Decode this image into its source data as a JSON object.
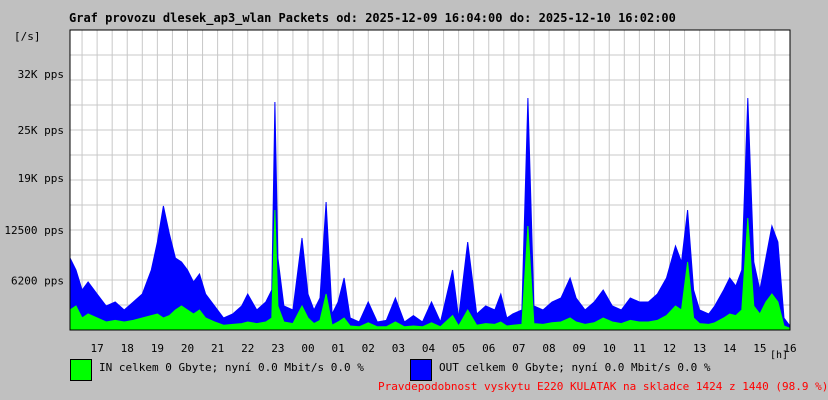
{
  "chart_data": {
    "type": "area",
    "title": "Graf provozu dlesek_ap3_wlan Packets od: 2025-12-09 16:04:00 do: 2025-12-10 16:02:00",
    "ylabel": "[/s]",
    "xlabel_unit": "[h]",
    "ylim": [
      0,
      37500
    ],
    "y_ticks": [
      {
        "value": 6200,
        "label": "6200 pps"
      },
      {
        "value": 12500,
        "label": "12500 pps"
      },
      {
        "value": 19000,
        "label": "19K pps"
      },
      {
        "value": 25000,
        "label": "25K pps"
      },
      {
        "value": 32000,
        "label": "32K pps"
      }
    ],
    "x_ticks": [
      "17",
      "18",
      "19",
      "20",
      "21",
      "22",
      "23",
      "00",
      "01",
      "02",
      "03",
      "04",
      "05",
      "06",
      "07",
      "08",
      "09",
      "10",
      "11",
      "12",
      "13",
      "14",
      "15",
      "16"
    ],
    "x_range_hours": [
      16.1,
      40.0
    ],
    "grid": true,
    "series": [
      {
        "name": "OUT",
        "color": "#0000ff",
        "points": [
          [
            16.1,
            9000
          ],
          [
            16.3,
            7500
          ],
          [
            16.5,
            5000
          ],
          [
            16.7,
            6000
          ],
          [
            17.0,
            4500
          ],
          [
            17.3,
            3000
          ],
          [
            17.6,
            3500
          ],
          [
            17.9,
            2500
          ],
          [
            18.2,
            3500
          ],
          [
            18.5,
            4500
          ],
          [
            18.8,
            7500
          ],
          [
            19.0,
            11000
          ],
          [
            19.2,
            15500
          ],
          [
            19.4,
            12000
          ],
          [
            19.6,
            9000
          ],
          [
            19.8,
            8500
          ],
          [
            20.0,
            7500
          ],
          [
            20.2,
            6000
          ],
          [
            20.4,
            7000
          ],
          [
            20.6,
            4500
          ],
          [
            20.9,
            3000
          ],
          [
            21.2,
            1500
          ],
          [
            21.5,
            2000
          ],
          [
            21.8,
            3000
          ],
          [
            22.0,
            4500
          ],
          [
            22.3,
            2500
          ],
          [
            22.6,
            3500
          ],
          [
            22.8,
            5000
          ],
          [
            22.9,
            28500
          ],
          [
            23.0,
            9000
          ],
          [
            23.2,
            3000
          ],
          [
            23.5,
            2500
          ],
          [
            23.8,
            11500
          ],
          [
            24.0,
            4500
          ],
          [
            24.2,
            2500
          ],
          [
            24.4,
            4000
          ],
          [
            24.6,
            16000
          ],
          [
            24.8,
            2000
          ],
          [
            25.0,
            3500
          ],
          [
            25.2,
            6500
          ],
          [
            25.4,
            1500
          ],
          [
            25.7,
            1000
          ],
          [
            26.0,
            3500
          ],
          [
            26.3,
            1000
          ],
          [
            26.6,
            1200
          ],
          [
            26.9,
            4000
          ],
          [
            27.2,
            1000
          ],
          [
            27.5,
            1800
          ],
          [
            27.8,
            1000
          ],
          [
            28.1,
            3500
          ],
          [
            28.4,
            1000
          ],
          [
            28.8,
            7500
          ],
          [
            29.0,
            1500
          ],
          [
            29.3,
            11000
          ],
          [
            29.6,
            2000
          ],
          [
            29.9,
            3000
          ],
          [
            30.2,
            2500
          ],
          [
            30.4,
            4500
          ],
          [
            30.6,
            1500
          ],
          [
            30.8,
            2000
          ],
          [
            31.1,
            2500
          ],
          [
            31.3,
            29000
          ],
          [
            31.5,
            3000
          ],
          [
            31.8,
            2500
          ],
          [
            32.1,
            3500
          ],
          [
            32.4,
            4000
          ],
          [
            32.7,
            6500
          ],
          [
            32.9,
            4000
          ],
          [
            33.2,
            2500
          ],
          [
            33.5,
            3500
          ],
          [
            33.8,
            5000
          ],
          [
            34.1,
            3000
          ],
          [
            34.4,
            2500
          ],
          [
            34.7,
            4000
          ],
          [
            35.0,
            3500
          ],
          [
            35.3,
            3500
          ],
          [
            35.6,
            4500
          ],
          [
            35.9,
            6500
          ],
          [
            36.2,
            10500
          ],
          [
            36.4,
            8500
          ],
          [
            36.6,
            15000
          ],
          [
            36.8,
            5000
          ],
          [
            37.0,
            2500
          ],
          [
            37.3,
            2000
          ],
          [
            37.5,
            3000
          ],
          [
            37.8,
            5000
          ],
          [
            38.0,
            6500
          ],
          [
            38.2,
            5500
          ],
          [
            38.4,
            7500
          ],
          [
            38.6,
            29000
          ],
          [
            38.8,
            8500
          ],
          [
            39.0,
            5000
          ],
          [
            39.2,
            9000
          ],
          [
            39.4,
            13000
          ],
          [
            39.6,
            11000
          ],
          [
            39.8,
            1500
          ],
          [
            40.0,
            500
          ]
        ]
      },
      {
        "name": "IN",
        "color": "#00ff00",
        "points": [
          [
            16.1,
            2500
          ],
          [
            16.3,
            3000
          ],
          [
            16.5,
            1500
          ],
          [
            16.7,
            2000
          ],
          [
            17.0,
            1500
          ],
          [
            17.3,
            1000
          ],
          [
            17.6,
            1200
          ],
          [
            17.9,
            1000
          ],
          [
            18.2,
            1200
          ],
          [
            18.5,
            1500
          ],
          [
            18.8,
            1800
          ],
          [
            19.0,
            2000
          ],
          [
            19.2,
            1500
          ],
          [
            19.4,
            1800
          ],
          [
            19.6,
            2500
          ],
          [
            19.8,
            3000
          ],
          [
            20.0,
            2500
          ],
          [
            20.2,
            2000
          ],
          [
            20.4,
            2500
          ],
          [
            20.6,
            1500
          ],
          [
            20.9,
            1000
          ],
          [
            21.2,
            600
          ],
          [
            21.5,
            700
          ],
          [
            21.8,
            800
          ],
          [
            22.0,
            1000
          ],
          [
            22.3,
            800
          ],
          [
            22.6,
            1000
          ],
          [
            22.8,
            1500
          ],
          [
            22.9,
            15000
          ],
          [
            23.0,
            3000
          ],
          [
            23.2,
            1000
          ],
          [
            23.5,
            800
          ],
          [
            23.8,
            3000
          ],
          [
            24.0,
            1500
          ],
          [
            24.2,
            800
          ],
          [
            24.4,
            1200
          ],
          [
            24.6,
            4500
          ],
          [
            24.8,
            600
          ],
          [
            25.0,
            1000
          ],
          [
            25.2,
            1500
          ],
          [
            25.4,
            500
          ],
          [
            25.7,
            400
          ],
          [
            26.0,
            900
          ],
          [
            26.3,
            400
          ],
          [
            26.6,
            400
          ],
          [
            26.9,
            1000
          ],
          [
            27.2,
            400
          ],
          [
            27.5,
            500
          ],
          [
            27.8,
            400
          ],
          [
            28.1,
            900
          ],
          [
            28.4,
            400
          ],
          [
            28.8,
            1800
          ],
          [
            29.0,
            500
          ],
          [
            29.3,
            2500
          ],
          [
            29.6,
            600
          ],
          [
            29.9,
            800
          ],
          [
            30.2,
            700
          ],
          [
            30.4,
            1000
          ],
          [
            30.6,
            500
          ],
          [
            30.8,
            600
          ],
          [
            31.1,
            700
          ],
          [
            31.3,
            13000
          ],
          [
            31.5,
            800
          ],
          [
            31.8,
            700
          ],
          [
            32.1,
            900
          ],
          [
            32.4,
            1000
          ],
          [
            32.7,
            1500
          ],
          [
            32.9,
            1000
          ],
          [
            33.2,
            700
          ],
          [
            33.5,
            900
          ],
          [
            33.8,
            1500
          ],
          [
            34.1,
            1000
          ],
          [
            34.4,
            800
          ],
          [
            34.7,
            1200
          ],
          [
            35.0,
            1000
          ],
          [
            35.3,
            1000
          ],
          [
            35.6,
            1200
          ],
          [
            35.9,
            1800
          ],
          [
            36.2,
            3000
          ],
          [
            36.4,
            2500
          ],
          [
            36.6,
            8500
          ],
          [
            36.8,
            1500
          ],
          [
            37.0,
            800
          ],
          [
            37.3,
            700
          ],
          [
            37.5,
            900
          ],
          [
            37.8,
            1500
          ],
          [
            38.0,
            2000
          ],
          [
            38.2,
            1800
          ],
          [
            38.4,
            2500
          ],
          [
            38.6,
            14000
          ],
          [
            38.8,
            3000
          ],
          [
            39.0,
            2000
          ],
          [
            39.2,
            3500
          ],
          [
            39.4,
            4500
          ],
          [
            39.6,
            3500
          ],
          [
            39.8,
            500
          ],
          [
            40.0,
            200
          ]
        ]
      }
    ]
  },
  "legend": {
    "in_text": "IN celkem 0 Gbyte; nyní   0.0 Mbit/s 0.0 %",
    "out_text": "OUT celkem 0 Gbyte; nyní   0.0 Mbit/s 0.0 %",
    "in_color": "#00ff00",
    "out_color": "#0000ff"
  },
  "footer": {
    "text": "Pravdepodobnost vyskytu E220 KULATAK na skladce 1424 z 1440 (98.9 %)"
  }
}
